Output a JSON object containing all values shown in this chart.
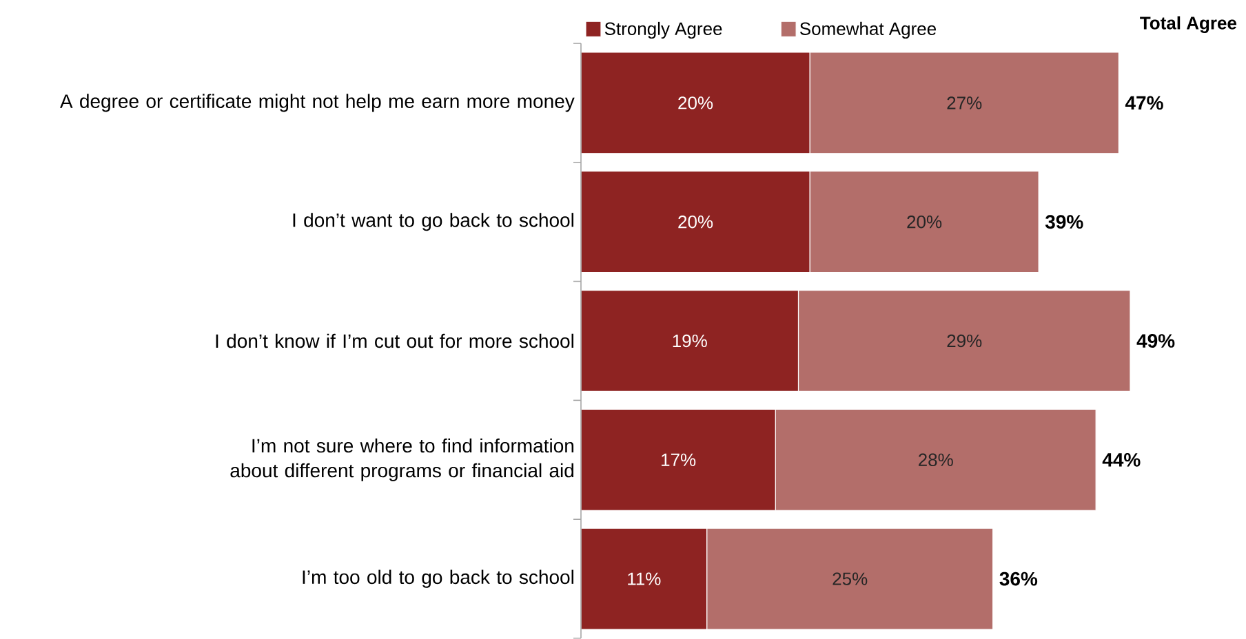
{
  "chart_data": {
    "type": "bar",
    "orientation": "horizontal",
    "stacked": true,
    "categories": [
      "A degree or certificate might not help me earn more money",
      "I don’t want to go back to school",
      "I don’t know if I’m cut out for more school",
      "I’m not sure where to find information about different programs or financial aid",
      "I’m too old to go back to school"
    ],
    "series": [
      {
        "name": "Strongly Agree",
        "color": "#8e2322",
        "values": [
          20,
          20,
          19,
          17,
          11
        ],
        "value_labels": [
          "20%",
          "20%",
          "19%",
          "17%",
          "11%"
        ]
      },
      {
        "name": "Somewhat Agree",
        "color": "#b36e6a",
        "values": [
          27,
          20,
          29,
          28,
          25
        ],
        "value_labels": [
          "27%",
          "20%",
          "29%",
          "28%",
          "25%"
        ]
      }
    ],
    "totals": [
      "47%",
      "39%",
      "49%",
      "44%",
      "36%"
    ],
    "annotations": [
      "Total Agree"
    ],
    "legend": "top"
  }
}
